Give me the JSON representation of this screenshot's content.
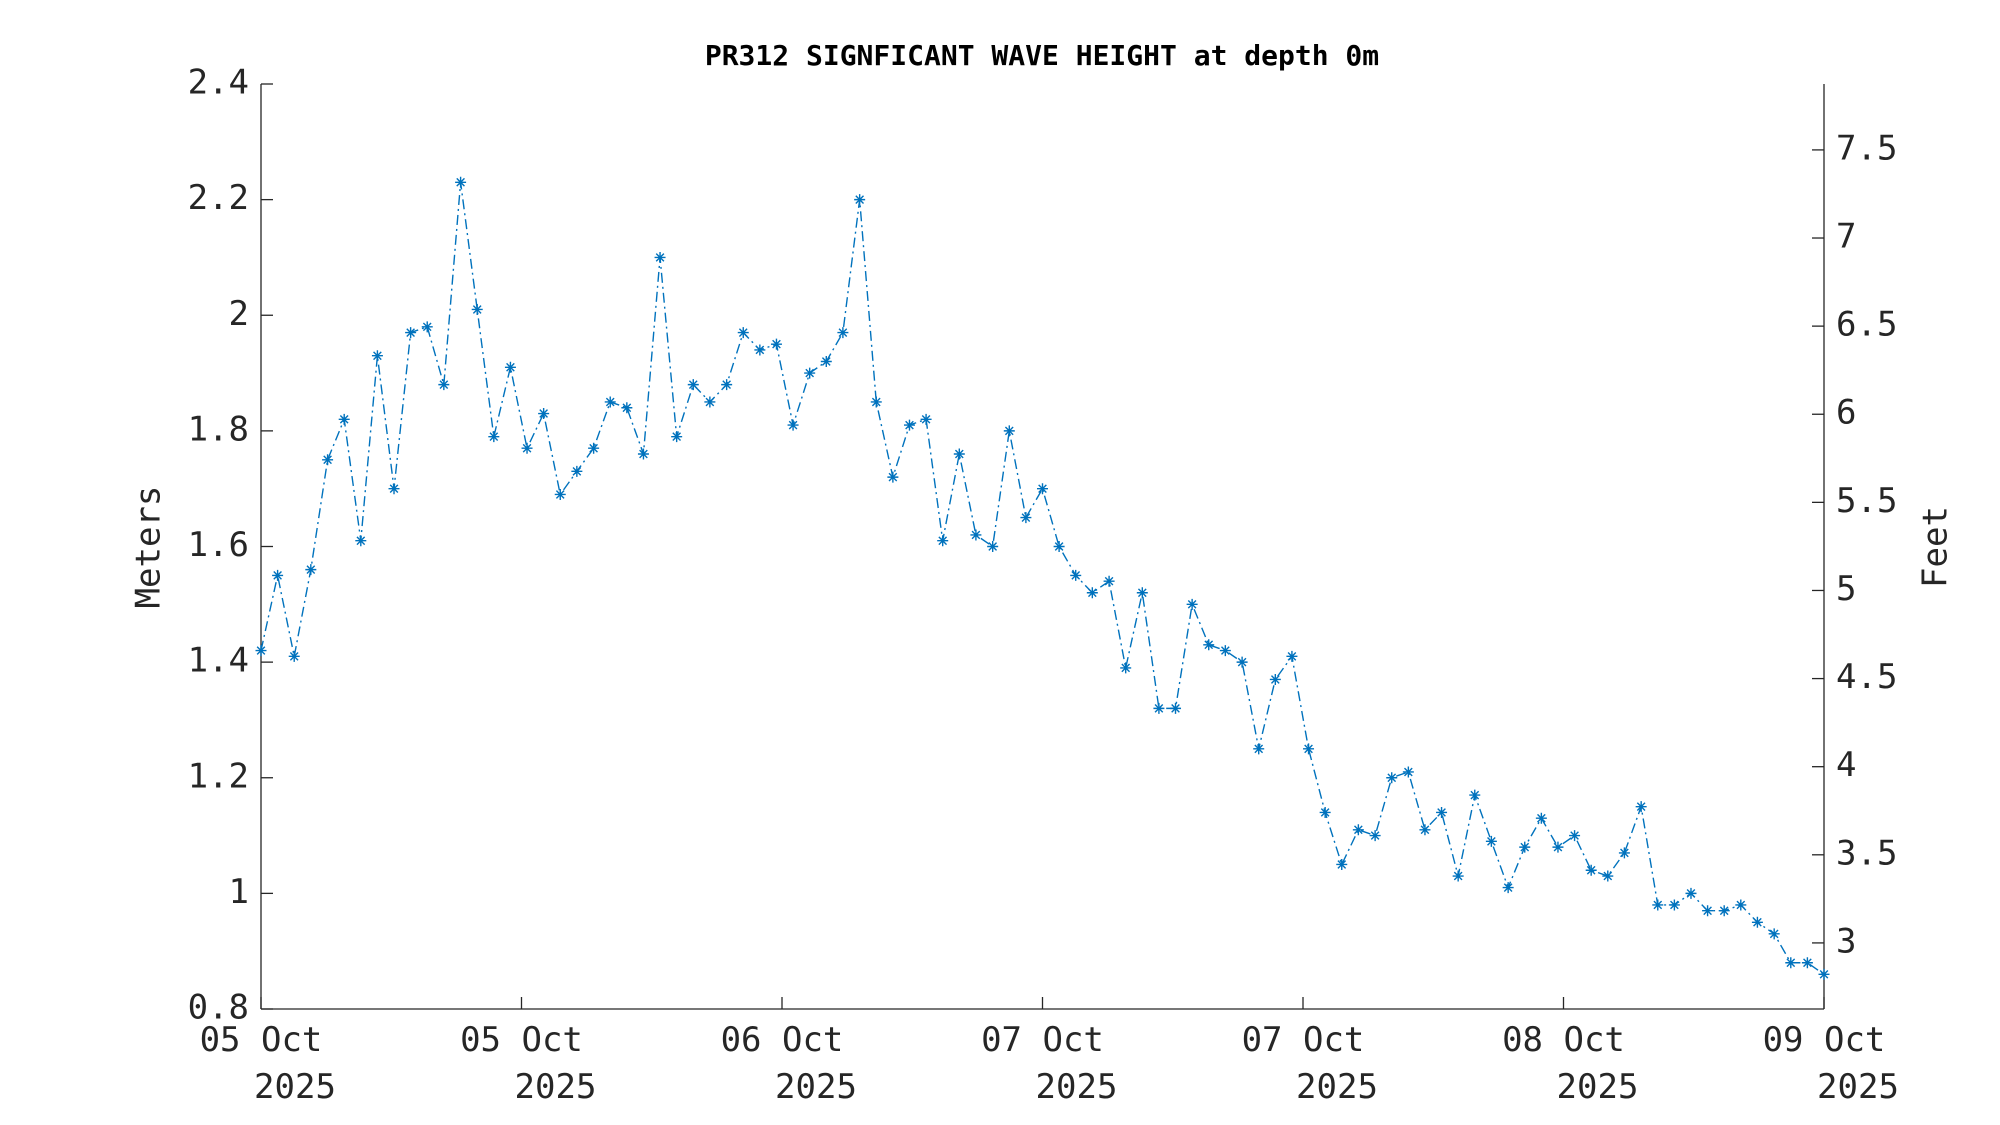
{
  "chart_data": {
    "type": "line",
    "title": "PR312 SIGNFICANT WAVE HEIGHT at depth 0m",
    "ylabel": "Meters",
    "y2label": "Feet",
    "x": [
      0,
      1.02,
      2.04,
      3.06,
      4.09,
      5.11,
      6.13,
      7.15,
      8.17,
      9.19,
      10.21,
      11.23,
      12.26,
      13.28,
      14.3,
      15.32,
      16.34,
      17.36,
      18.38,
      19.4,
      20.43,
      21.45,
      22.47,
      23.49,
      24.51,
      25.53,
      26.55,
      27.57,
      28.6,
      29.62,
      30.64,
      31.66,
      32.68,
      33.7,
      34.72,
      35.74,
      36.77,
      37.79,
      38.81,
      39.83,
      40.85,
      41.87,
      42.89,
      43.91,
      44.94,
      45.96,
      46.98,
      48,
      49.02,
      50.04,
      51.06,
      52.09,
      53.11,
      54.13,
      55.15,
      56.17,
      57.19,
      58.21,
      59.23,
      60.26,
      61.28,
      62.3,
      63.32,
      64.34,
      65.36,
      66.38,
      67.4,
      68.43,
      69.45,
      70.47,
      71.49,
      72.51,
      73.53,
      74.55,
      75.57,
      76.6,
      77.62,
      78.64,
      79.66,
      80.68,
      81.7,
      82.72,
      83.74,
      84.77,
      85.79,
      86.81,
      87.83,
      88.85,
      89.87,
      90.89,
      91.91,
      92.94,
      93.96,
      94.98,
      96
    ],
    "series": [
      {
        "color": "#0072BD",
        "values": [
          1.42,
          1.55,
          1.41,
          1.56,
          1.75,
          1.82,
          1.61,
          1.93,
          1.7,
          1.97,
          1.98,
          1.88,
          2.23,
          2.01,
          1.79,
          1.91,
          1.77,
          1.83,
          1.69,
          1.73,
          1.77,
          1.85,
          1.84,
          1.76,
          2.1,
          1.79,
          1.88,
          1.85,
          1.88,
          1.97,
          1.94,
          1.95,
          1.81,
          1.9,
          1.92,
          1.97,
          2.2,
          1.85,
          1.72,
          1.81,
          1.82,
          1.61,
          1.76,
          1.62,
          1.6,
          1.8,
          1.65,
          1.7,
          1.6,
          1.55,
          1.52,
          1.54,
          1.39,
          1.52,
          1.32,
          1.32,
          1.5,
          1.43,
          1.42,
          1.4,
          1.25,
          1.37,
          1.41,
          1.25,
          1.14,
          1.05,
          1.11,
          1.1,
          1.2,
          1.21,
          1.11,
          1.14,
          1.03,
          1.17,
          1.09,
          1.01,
          1.08,
          1.13,
          1.08,
          1.1,
          1.04,
          1.03,
          1.07,
          1.15,
          0.98,
          0.98,
          1.0,
          0.97,
          0.97,
          0.98,
          0.95,
          0.93,
          0.88,
          0.88,
          0.86
        ]
      }
    ],
    "xlim": [
      0,
      96
    ],
    "xticks": [
      {
        "value": 0,
        "label": "05 Oct 2025"
      },
      {
        "value": 16,
        "label": "05 Oct 2025"
      },
      {
        "value": 32,
        "label": "06 Oct 2025"
      },
      {
        "value": 48,
        "label": "07 Oct 2025"
      },
      {
        "value": 64,
        "label": "07 Oct 2025"
      },
      {
        "value": 80,
        "label": "08 Oct 2025"
      },
      {
        "value": 96,
        "label": "09 Oct 2025"
      }
    ],
    "ylim": [
      0.8,
      2.4
    ],
    "yticks": [
      0.8,
      1,
      1.2,
      1.4,
      1.6,
      1.8,
      2,
      2.2,
      2.4
    ],
    "y2lim": [
      2.625,
      7.874
    ],
    "y2ticks": [
      3,
      3.5,
      4,
      4.5,
      5,
      5.5,
      6,
      6.5,
      7,
      7.5
    ]
  }
}
